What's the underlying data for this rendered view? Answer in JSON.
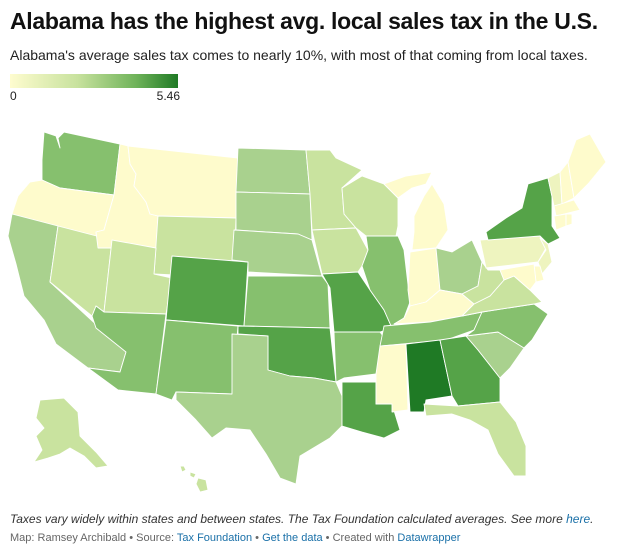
{
  "header": {
    "title": "Alabama has the highest avg. local sales tax in the U.S.",
    "subtitle": "Alabama's average sales tax comes to nearly 10%, with most of that coming from local taxes."
  },
  "legend": {
    "min": "0",
    "max": "5.46"
  },
  "colors": {
    "none": "#fefbcc",
    "very_low": "#eef4bf",
    "low": "#c9e39f",
    "mid": "#a9d18e",
    "high": "#86c06e",
    "very_high": "#55a348",
    "highest": "#1f7a25",
    "link": "#1a70a8"
  },
  "states": {
    "WA": "high",
    "OR": "none",
    "ID": "none",
    "MT": "none",
    "WY": "low",
    "ND": "mid",
    "SD": "mid",
    "NE": "mid",
    "KS": "high",
    "OK": "very_high",
    "TX": "mid",
    "NM": "high",
    "AZ": "high",
    "UT": "low",
    "NV": "low",
    "CA": "mid",
    "CO": "very_high",
    "MN": "low",
    "IA": "low",
    "MO": "very_high",
    "AR": "high",
    "LA": "very_high",
    "WI": "low",
    "IL": "high",
    "MI": "none",
    "IN": "none",
    "OH": "mid",
    "KY": "none",
    "TN": "high",
    "MS": "none",
    "AL": "highest",
    "GA": "very_high",
    "FL": "low",
    "SC": "mid",
    "NC": "high",
    "VA": "low",
    "WV": "low",
    "PA": "very_low",
    "NY": "very_high",
    "VT": "very_low",
    "NH": "none",
    "ME": "none",
    "MA": "none",
    "CT": "none",
    "RI": "none",
    "NJ": "very_low",
    "DE": "none",
    "MD": "none",
    "AK": "low",
    "HI": "low"
  },
  "footer": {
    "note_text": "Taxes vary widely within states and between states. The Tax Foundation calculated averages. See more ",
    "note_link": "here",
    "note_end": ".",
    "credit": "Map: Ramsey Archibald • Source: ",
    "source_link": "Tax Foundation",
    "sep1": " • ",
    "data_link": "Get the data",
    "sep2": " • Created with ",
    "tool_link": "Datawrapper"
  }
}
